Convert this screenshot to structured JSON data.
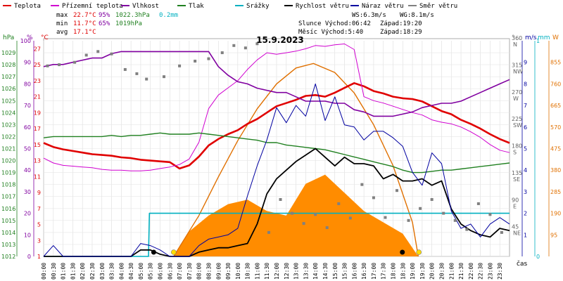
{
  "chart_data": {
    "type": "line",
    "title": "15.9.2023",
    "legend": [
      {
        "label": "Teplota",
        "color": "#e00000"
      },
      {
        "label": "Přízemní teplota",
        "color": "#d000d0"
      },
      {
        "label": "Vlhkost",
        "color": "#8000a0"
      },
      {
        "label": "Tlak",
        "color": "#208020"
      },
      {
        "label": "Srážky",
        "color": "#00b0c0"
      },
      {
        "label": "Rychlost větru",
        "color": "#000000"
      },
      {
        "label": "Náraz větru",
        "color": "#0000a0"
      },
      {
        "label": "Směr větru",
        "color": "#808080"
      }
    ],
    "stats": {
      "max_label": "max",
      "min_label": "min",
      "avg_label": "avg",
      "max_temp": "22.7°C",
      "max_hum": "95%",
      "max_press": "1022.3hPa",
      "max_rain": "0.2mm",
      "min_temp": "11.7°C",
      "min_hum": "65%",
      "min_press": "1019hPa",
      "avg_temp": "17.1°C"
    },
    "info": {
      "ws": "WS:6.3m/s",
      "wg": "WG:8.1m/s",
      "sun_rise": "Slunce Východ:06:42",
      "sun_set": "Západ:19:20",
      "moon_rise": "Měsíc Východ:5:40",
      "moon_set": "Západ:18:29"
    },
    "units_left": [
      "hPa",
      "%",
      "°C"
    ],
    "units_right": [
      "°",
      "m/s",
      "mm",
      "W"
    ],
    "x_axis_label": "čas",
    "x_ticks": [
      "00:00",
      "00:30",
      "01:00",
      "01:30",
      "02:00",
      "02:30",
      "03:00",
      "03:30",
      "04:00",
      "04:30",
      "05:00",
      "05:30",
      "06:00",
      "06:30",
      "07:00",
      "07:30",
      "08:00",
      "08:30",
      "09:00",
      "09:30",
      "10:00",
      "10:30",
      "11:00",
      "11:30",
      "12:00",
      "12:30",
      "13:00",
      "13:30",
      "14:00",
      "14:30",
      "15:00",
      "15:30",
      "16:00",
      "16:30",
      "17:00",
      "17:30",
      "18:00",
      "18:30",
      "19:00",
      "19:30",
      "20:00",
      "20:30",
      "21:00",
      "21:30",
      "22:00",
      "22:30",
      "23:00",
      "23:30"
    ],
    "axes": {
      "pressure": {
        "min": 1012,
        "max": 1030,
        "labels": [
          "1012",
          "1013",
          "1014",
          "1015",
          "1016",
          "1017",
          "1018",
          "1019",
          "1020",
          "1021",
          "1022",
          "1023",
          "1024",
          "1025",
          "1026",
          "1027",
          "1028",
          "1029"
        ]
      },
      "humidity": {
        "min": 0,
        "max": 100,
        "labels": [
          "0",
          "10",
          "20",
          "30",
          "40",
          "50",
          "60",
          "70",
          "80",
          "90",
          "100"
        ]
      },
      "temperature": {
        "min": 1,
        "max": 28,
        "labels": [
          "1",
          "3",
          "5",
          "7",
          "9",
          "11",
          "13",
          "15",
          "17",
          "19",
          "21",
          "23",
          "25",
          "27"
        ]
      },
      "direction": {
        "min": 0,
        "max": 360,
        "labels": [
          {
            "v": 45,
            "t": "45",
            "c": "NE"
          },
          {
            "v": 90,
            "t": "90",
            "c": "E"
          },
          {
            "v": 135,
            "t": "135",
            "c": "SE"
          },
          {
            "v": 180,
            "t": "180",
            "c": "S"
          },
          {
            "v": 225,
            "t": "225",
            "c": "SW"
          },
          {
            "v": 270,
            "t": "270",
            "c": "W"
          },
          {
            "v": 315,
            "t": "315",
            "c": "NW"
          },
          {
            "v": 360,
            "t": "360",
            "c": "N"
          }
        ]
      },
      "wind": {
        "min": 0,
        "max": 10,
        "labels": [
          "1",
          "2",
          "3",
          "4",
          "5",
          "6",
          "7",
          "8",
          "9"
        ]
      },
      "rain": {
        "min": 0,
        "max": 1,
        "labels": [
          "0",
          "1"
        ]
      },
      "solar": {
        "min": 0,
        "max": 950,
        "labels": [
          "95",
          "190",
          "285",
          "380",
          "475",
          "570",
          "665",
          "760",
          "855"
        ]
      }
    },
    "series": [
      {
        "name": "Teplota",
        "color": "#e00000",
        "x": [
          0,
          0.5,
          1,
          1.5,
          2,
          2.5,
          3,
          3.5,
          4,
          4.5,
          5,
          5.5,
          6,
          6.5,
          7,
          7.5,
          8,
          8.5,
          9,
          9.5,
          10,
          10.5,
          11,
          11.5,
          12,
          12.5,
          13,
          13.5,
          14,
          14.5,
          15,
          15.5,
          16,
          16.5,
          17,
          17.5,
          18,
          18.5,
          19,
          19.5,
          20,
          20.5,
          21,
          21.5,
          22,
          22.5,
          23,
          23.5,
          24
        ],
        "values": [
          15.2,
          14.7,
          14.4,
          14.2,
          14.0,
          13.8,
          13.7,
          13.6,
          13.4,
          13.3,
          13.1,
          13.0,
          12.9,
          12.8,
          12.0,
          12.4,
          13.5,
          14.9,
          15.7,
          16.3,
          16.8,
          17.6,
          18.2,
          19.0,
          19.8,
          20.2,
          20.6,
          21.1,
          21.2,
          21.0,
          21.5,
          22.1,
          22.7,
          22.3,
          21.7,
          21.4,
          21.0,
          20.8,
          20.7,
          20.4,
          19.8,
          19.2,
          18.8,
          18.1,
          17.6,
          17.0,
          16.3,
          15.7,
          15.2
        ]
      },
      {
        "name": "Přízemní teplota",
        "color": "#d000d0",
        "x": [
          0,
          0.5,
          1,
          1.5,
          2,
          2.5,
          3,
          3.5,
          4,
          4.5,
          5,
          5.5,
          6,
          6.5,
          7,
          7.5,
          8,
          8.5,
          9,
          9.5,
          10,
          10.5,
          11,
          11.5,
          12,
          12.5,
          13,
          13.5,
          14,
          14.5,
          15,
          15.5,
          16,
          16.5,
          17,
          17.5,
          18,
          18.5,
          19,
          19.5,
          20,
          20.5,
          21,
          21.5,
          22,
          22.5,
          23,
          23.5,
          24
        ],
        "values": [
          13.3,
          12.7,
          12.4,
          12.3,
          12.2,
          12.1,
          11.9,
          11.8,
          11.8,
          11.7,
          11.7,
          11.8,
          12.0,
          12.2,
          12.5,
          13.2,
          15.3,
          19.5,
          21.2,
          22.1,
          23.0,
          24.4,
          25.6,
          26.5,
          26.3,
          26.5,
          26.7,
          27.0,
          27.4,
          27.3,
          27.5,
          27.6,
          26.9,
          21.0,
          20.5,
          20.2,
          19.8,
          19.4,
          19.0,
          18.7,
          18.1,
          17.8,
          17.6,
          17.2,
          16.6,
          15.9,
          15.0,
          14.3,
          14.0
        ]
      },
      {
        "name": "Vlhkost",
        "color": "#8000a0",
        "x": [
          0,
          0.5,
          1,
          1.5,
          2,
          2.5,
          3,
          3.5,
          4,
          4.5,
          5,
          5.5,
          6,
          6.5,
          7,
          7.5,
          8,
          8.5,
          9,
          9.5,
          10,
          10.5,
          11,
          11.5,
          12,
          12.5,
          13,
          13.5,
          14,
          14.5,
          15,
          15.5,
          16,
          16.5,
          17,
          17.5,
          18,
          18.5,
          19,
          19.5,
          20,
          20.5,
          21,
          21.5,
          22,
          22.5,
          23,
          23.5,
          24
        ],
        "values": [
          88,
          89,
          89,
          90,
          91,
          92,
          92,
          94,
          95,
          95,
          95,
          95,
          95,
          95,
          95,
          95,
          95,
          95,
          88,
          84,
          81,
          80,
          78,
          77,
          76,
          76,
          74,
          72,
          72,
          72,
          71,
          71,
          68,
          67,
          65,
          65,
          65,
          66,
          67,
          69,
          70,
          71,
          71,
          72,
          74,
          76,
          78,
          80,
          82
        ]
      },
      {
        "name": "Tlak",
        "color": "#208020",
        "x": [
          0,
          0.5,
          1,
          1.5,
          2,
          2.5,
          3,
          3.5,
          4,
          4.5,
          5,
          5.5,
          6,
          6.5,
          7,
          7.5,
          8,
          8.5,
          9,
          9.5,
          10,
          10.5,
          11,
          11.5,
          12,
          12.5,
          13,
          13.5,
          14,
          14.5,
          15,
          15.5,
          16,
          16.5,
          17,
          17.5,
          18,
          18.5,
          19,
          19.5,
          20,
          20.5,
          21,
          21.5,
          22,
          22.5,
          23,
          23.5,
          24
        ],
        "values": [
          1021.9,
          1022.0,
          1022.0,
          1022.0,
          1022.0,
          1022.0,
          1022.0,
          1022.1,
          1022.0,
          1022.1,
          1022.1,
          1022.2,
          1022.3,
          1022.2,
          1022.2,
          1022.2,
          1022.3,
          1022.2,
          1022.1,
          1022.0,
          1021.9,
          1021.8,
          1021.7,
          1021.5,
          1021.5,
          1021.3,
          1021.2,
          1021.1,
          1021.0,
          1020.9,
          1020.7,
          1020.5,
          1020.3,
          1020.1,
          1019.9,
          1019.7,
          1019.5,
          1019.2,
          1019.0,
          1019.0,
          1019.1,
          1019.2,
          1019.2,
          1019.3,
          1019.4,
          1019.5,
          1019.6,
          1019.7,
          1019.8
        ]
      },
      {
        "name": "Srážky",
        "color": "#00b0c0",
        "x": [
          0,
          5.4,
          5.45,
          24
        ],
        "values": [
          0,
          0,
          0.2,
          0.2
        ]
      },
      {
        "name": "Rychlost větru",
        "color": "#000000",
        "x": [
          0,
          0.5,
          1,
          1.5,
          2,
          2.5,
          3,
          3.5,
          4,
          4.5,
          5,
          5.5,
          6,
          6.5,
          7,
          7.5,
          8,
          8.5,
          9,
          9.5,
          10,
          10.5,
          11,
          11.5,
          12,
          12.5,
          13,
          13.5,
          14,
          14.5,
          15,
          15.5,
          16,
          16.5,
          17,
          17.5,
          18,
          18.5,
          19,
          19.5,
          20,
          20.5,
          21,
          21.5,
          22,
          22.5,
          23,
          23.5,
          24
        ],
        "values": [
          0,
          0,
          0,
          0,
          0,
          0,
          0,
          0,
          0,
          0,
          0.3,
          0.3,
          0.1,
          0,
          0,
          0,
          0.2,
          0.3,
          0.4,
          0.4,
          0.5,
          0.6,
          1.5,
          2.9,
          3.6,
          4.0,
          4.4,
          4.7,
          5.0,
          4.6,
          4.2,
          4.6,
          4.3,
          4.3,
          4.2,
          3.6,
          3.8,
          3.5,
          3.5,
          3.6,
          3.3,
          3.5,
          2.2,
          1.5,
          1.2,
          1.0,
          0.9,
          1.3,
          1.2
        ]
      },
      {
        "name": "Náraz větru",
        "color": "#0000a0",
        "x": [
          0,
          0.5,
          1,
          1.5,
          2,
          2.5,
          3,
          3.5,
          4,
          4.5,
          5,
          5.5,
          6,
          6.5,
          7,
          7.5,
          8,
          8.5,
          9,
          9.5,
          10,
          10.5,
          11,
          11.5,
          12,
          12.5,
          13,
          13.5,
          14,
          14.5,
          15,
          15.5,
          16,
          16.5,
          17,
          17.5,
          18,
          18.5,
          19,
          19.5,
          20,
          20.5,
          21,
          21.5,
          22,
          22.5,
          23,
          23.5,
          24
        ],
        "values": [
          0,
          0.5,
          0,
          0,
          0,
          0,
          0,
          0,
          0,
          0,
          0.6,
          0.5,
          0.3,
          0,
          0,
          0,
          0.5,
          0.8,
          0.9,
          1.0,
          1.3,
          2.8,
          4.2,
          5.4,
          6.9,
          6.2,
          7.0,
          6.5,
          8.0,
          6.3,
          7.4,
          6.1,
          6.0,
          5.4,
          5.8,
          5.8,
          5.5,
          5.1,
          3.9,
          3.3,
          4.8,
          4.3,
          2.1,
          1.3,
          1.5,
          0.9,
          1.5,
          1.8,
          1.5
        ]
      },
      {
        "name": "Směr větru",
        "color": "#808080",
        "x": [
          0.2,
          0.8,
          1.6,
          2.2,
          2.8,
          3.5,
          4.2,
          4.8,
          5.3,
          6.2,
          7.0,
          7.8,
          8.5,
          9.2,
          9.8,
          10.4,
          11.0,
          11.6,
          12.2,
          12.8,
          13.4,
          14.0,
          14.6,
          15.2,
          15.8,
          16.4,
          17.0,
          17.6,
          18.2,
          18.8,
          19.4,
          20.0,
          20.6,
          21.2,
          21.8,
          22.4,
          23.0,
          23.6
        ],
        "values": [
          318,
          320,
          324,
          336,
          342,
          338,
          312,
          305,
          296,
          300,
          318,
          326,
          330,
          340,
          352,
          348,
          355,
          40,
          95,
          72,
          55,
          70,
          48,
          88,
          64,
          120,
          98,
          65,
          110,
          60,
          80,
          95,
          72,
          60,
          45,
          88,
          70,
          40
        ]
      }
    ],
    "solar_series": {
      "name": "Slunce",
      "x": [
        6.7,
        7.5,
        8.5,
        9.5,
        10.5,
        11.5,
        12.5,
        13.5,
        14.5,
        15.5,
        16.5,
        17.5,
        18.5,
        19.3
      ],
      "values": [
        0,
        110,
        180,
        230,
        250,
        200,
        180,
        320,
        360,
        280,
        200,
        150,
        100,
        0
      ]
    },
    "solar_theoretical": {
      "name": "Teoretické záření",
      "x": [
        6.7,
        8,
        9,
        10,
        11,
        12,
        13,
        13.9,
        15,
        16,
        17,
        18,
        19,
        19.3
      ],
      "values": [
        0,
        180,
        350,
        510,
        650,
        760,
        830,
        850,
        810,
        720,
        580,
        400,
        150,
        0
      ]
    }
  }
}
